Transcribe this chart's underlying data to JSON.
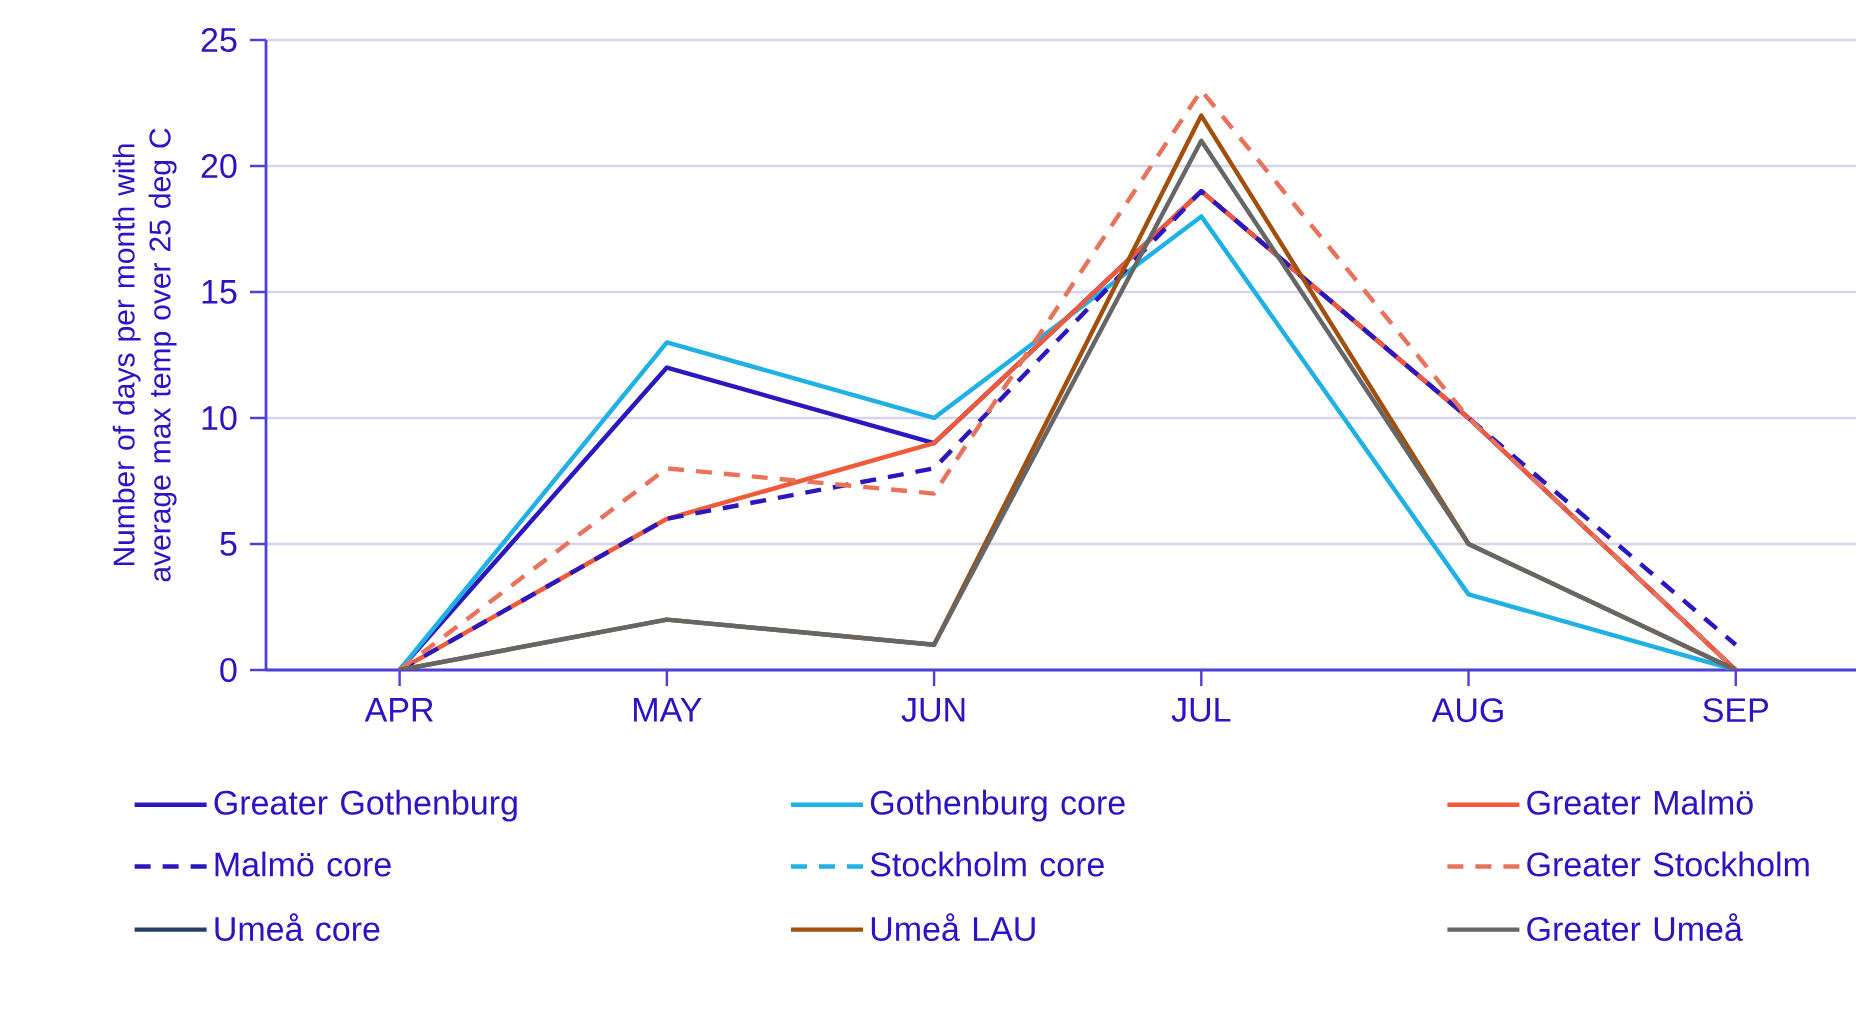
{
  "chart_data": {
    "type": "line",
    "ylabel": "Number of days per month with average max temp over 25 deg C",
    "categories": [
      "APR",
      "MAY",
      "JUN",
      "JUL",
      "AUG",
      "SEP"
    ],
    "ylim": [
      0,
      25
    ],
    "yticks": [
      0,
      5,
      10,
      15,
      20,
      25
    ],
    "grid": "y",
    "legend": "bottom",
    "series": [
      {
        "name": "Greater Gothenburg",
        "color": "#2a17c0",
        "line_style": "solid",
        "values": [
          0,
          12,
          9,
          19,
          10,
          0
        ]
      },
      {
        "name": "Gothenburg core",
        "color": "#1fb0e6",
        "line_style": "solid",
        "values": [
          0,
          13,
          10,
          18,
          3,
          0
        ]
      },
      {
        "name": "Greater Malmö",
        "color": "#f05a3a",
        "line_style": "solid",
        "values": [
          0,
          6,
          9,
          19,
          10,
          0
        ]
      },
      {
        "name": "Malmö core",
        "color": "#2a17c0",
        "line_style": "dashed",
        "values": [
          0,
          6,
          8,
          19,
          10,
          1
        ]
      },
      {
        "name": "Stockholm core",
        "color": "#1fb0e6",
        "line_style": "dashed",
        "values": [
          null,
          null,
          null,
          null,
          null,
          null
        ]
      },
      {
        "name": "Greater Stockholm",
        "color": "#e8735a",
        "line_style": "dashed",
        "values": [
          0,
          8,
          7,
          23,
          10,
          0
        ]
      },
      {
        "name": "Umeå core",
        "color": "#243f66",
        "line_style": "solid",
        "values": [
          null,
          null,
          null,
          null,
          null,
          null
        ]
      },
      {
        "name": "Umeå LAU",
        "color": "#a24f0c",
        "line_style": "solid",
        "values": [
          0,
          2,
          1,
          22,
          5,
          0
        ]
      },
      {
        "name": "Greater Umeå",
        "color": "#666666",
        "line_style": "solid",
        "values": [
          0,
          2,
          1,
          21,
          5,
          0
        ]
      }
    ]
  }
}
